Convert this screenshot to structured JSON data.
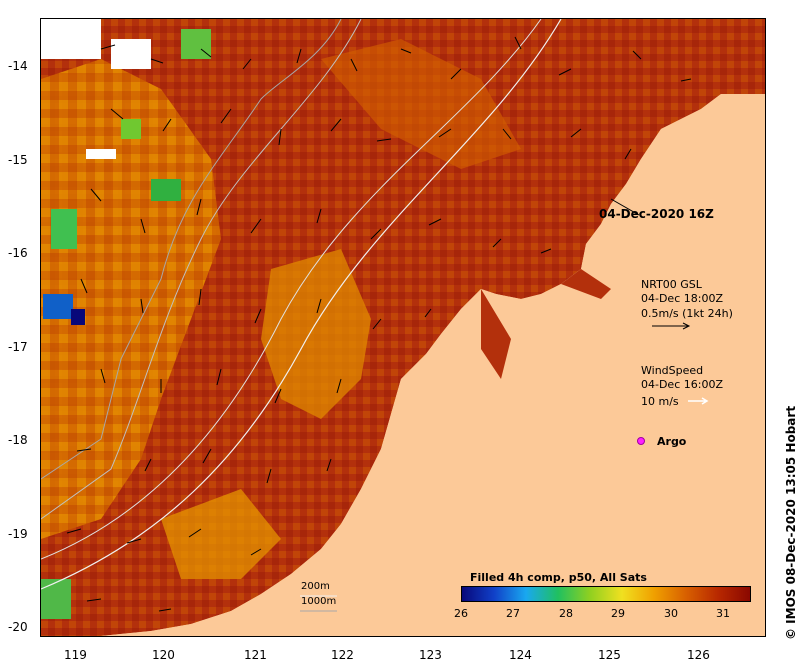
{
  "map": {
    "lat_labels": [
      "-14",
      "-15",
      "-16",
      "-17",
      "-18",
      "-19",
      "-20"
    ],
    "lon_labels": [
      "119",
      "120",
      "121",
      "122",
      "123",
      "124",
      "125",
      "126"
    ]
  },
  "annotations": {
    "timestamp": "04-Dec-2020 16Z",
    "current_title": "NRT00 GSL",
    "current_time": "04-Dec 18:00Z",
    "current_scale": "0.5m/s (1kt 24h)",
    "wind_title": "WindSpeed",
    "wind_time": "04-Dec 16:00Z",
    "wind_scale": "10 m/s",
    "argo_label": "Argo",
    "contour_200": "200m",
    "contour_1000": "1000m",
    "credit": "© IMOS 08-Dec-2020 13:05 Hobart"
  },
  "colorbar": {
    "title": "Filled 4h comp, p50, All Sats",
    "ticks": [
      "26",
      "27",
      "28",
      "29",
      "30",
      "31"
    ],
    "colors": [
      "#08087a",
      "#1040c8",
      "#19a8f0",
      "#20c060",
      "#90d020",
      "#f0e020",
      "#f0a000",
      "#d86000",
      "#b82800",
      "#8a0800"
    ]
  },
  "colors": {
    "land": "#fcc998",
    "sst_warm": "#b83010",
    "sst_mid": "#d86a00",
    "sst_cool": "#f0a800"
  }
}
